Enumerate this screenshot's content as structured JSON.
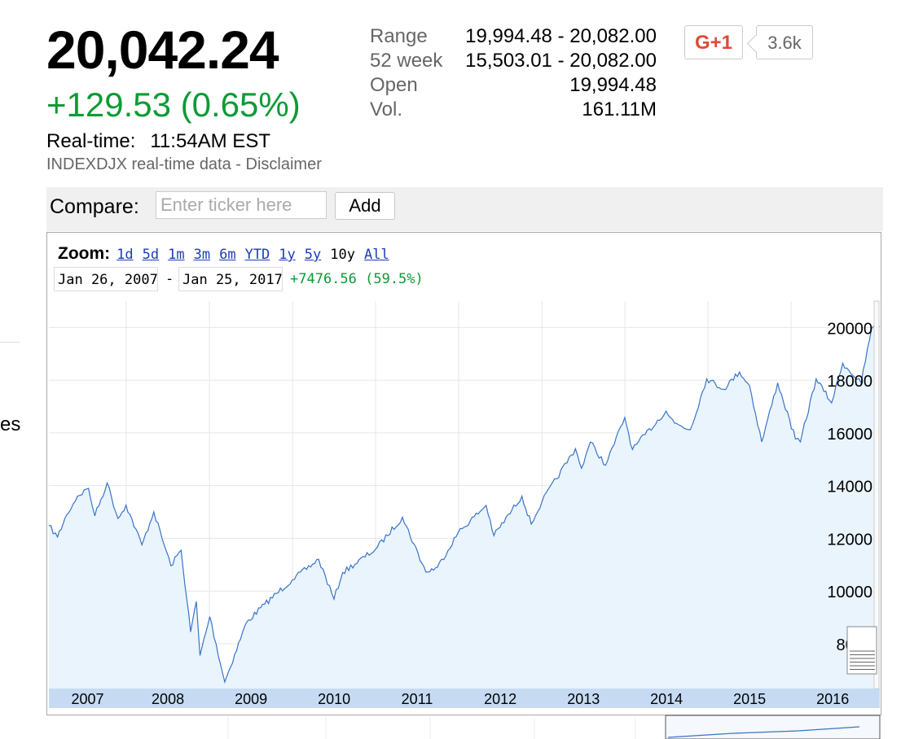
{
  "quote": {
    "price": "20,042.24",
    "change": "+129.53 (0.65%)",
    "realtime_label": "Real-time:",
    "realtime_time": "11:54AM EST",
    "source": "INDEXDJX real-time data - Disclaimer"
  },
  "stats": [
    {
      "label": "Range",
      "value": "19,994.48 - 20,082.00"
    },
    {
      "label": "52 week",
      "value": "15,503.01 - 20,082.00"
    },
    {
      "label": "Open",
      "value": "19,994.48"
    },
    {
      "label": "Vol.",
      "value": "161.11M"
    }
  ],
  "social": {
    "gplus_label": "G+1",
    "count": "3.6k"
  },
  "compare": {
    "label": "Compare:",
    "placeholder": "Enter ticker here",
    "add_label": "Add"
  },
  "zoom": {
    "label": "Zoom:",
    "options": [
      "1d",
      "5d",
      "1m",
      "3m",
      "6m",
      "YTD",
      "1y",
      "5y",
      "10y",
      "All"
    ],
    "selected": "10y"
  },
  "range": {
    "start": "Jan 26, 2007",
    "separator": "-",
    "end": "Jan 25, 2017",
    "change": "+7476.56 (59.5%)"
  },
  "side_text": "es",
  "colors": {
    "line": "#3874c8",
    "fill": "#eaf4fc",
    "axis_band": "#c6dbf3",
    "grid": "#e6e6e6",
    "positive": "#0d9b35",
    "link": "#1b3bbb"
  },
  "chart_data": {
    "type": "area",
    "x_tick_labels": [
      "2007",
      "2008",
      "2009",
      "2010",
      "2011",
      "2012",
      "2013",
      "2014",
      "2015",
      "2016"
    ],
    "y_tick_labels": [
      "8000",
      "10000",
      "12000",
      "14000",
      "16000",
      "18000",
      "20000"
    ],
    "ylim": [
      6300,
      21000
    ],
    "x_range": [
      "2007-01-26",
      "2017-01-25"
    ],
    "grid": true,
    "y_axis_position": "right",
    "series": [
      {
        "points": [
          [
            "2007-01-26",
            12480
          ],
          [
            "2007-03-05",
            12050
          ],
          [
            "2007-04-15",
            12900
          ],
          [
            "2007-06-01",
            13600
          ],
          [
            "2007-07-19",
            13900
          ],
          [
            "2007-08-16",
            12850
          ],
          [
            "2007-10-09",
            14100
          ],
          [
            "2007-11-26",
            12750
          ],
          [
            "2007-12-31",
            13260
          ],
          [
            "2008-03-10",
            11750
          ],
          [
            "2008-05-01",
            13000
          ],
          [
            "2008-07-15",
            10960
          ],
          [
            "2008-08-29",
            11550
          ],
          [
            "2008-10-10",
            8450
          ],
          [
            "2008-11-04",
            9600
          ],
          [
            "2008-11-20",
            7550
          ],
          [
            "2009-01-02",
            9030
          ],
          [
            "2009-03-09",
            6550
          ],
          [
            "2009-06-12",
            8800
          ],
          [
            "2009-08-31",
            9500
          ],
          [
            "2009-12-31",
            10430
          ],
          [
            "2010-04-26",
            11200
          ],
          [
            "2010-07-02",
            9690
          ],
          [
            "2010-08-09",
            10700
          ],
          [
            "2010-12-31",
            11580
          ],
          [
            "2011-04-29",
            12800
          ],
          [
            "2011-08-10",
            10720
          ],
          [
            "2011-09-30",
            10900
          ],
          [
            "2011-12-30",
            12220
          ],
          [
            "2012-05-01",
            13250
          ],
          [
            "2012-06-04",
            12100
          ],
          [
            "2012-10-05",
            13600
          ],
          [
            "2012-11-15",
            12540
          ],
          [
            "2013-01-02",
            13410
          ],
          [
            "2013-05-28",
            15400
          ],
          [
            "2013-06-24",
            14660
          ],
          [
            "2013-08-02",
            15650
          ],
          [
            "2013-10-08",
            14770
          ],
          [
            "2013-12-31",
            16580
          ],
          [
            "2014-02-03",
            15370
          ],
          [
            "2014-06-30",
            16830
          ],
          [
            "2014-08-07",
            16370
          ],
          [
            "2014-10-15",
            16120
          ],
          [
            "2014-12-26",
            18050
          ],
          [
            "2015-03-10",
            17660
          ],
          [
            "2015-05-19",
            18310
          ],
          [
            "2015-07-02",
            17800
          ],
          [
            "2015-08-25",
            15660
          ],
          [
            "2015-11-03",
            17900
          ],
          [
            "2016-01-20",
            15770
          ],
          [
            "2016-02-11",
            15660
          ],
          [
            "2016-04-20",
            18050
          ],
          [
            "2016-06-27",
            17140
          ],
          [
            "2016-08-15",
            18640
          ],
          [
            "2016-11-04",
            17890
          ],
          [
            "2016-12-20",
            19970
          ],
          [
            "2017-01-25",
            20040
          ]
        ]
      }
    ]
  }
}
